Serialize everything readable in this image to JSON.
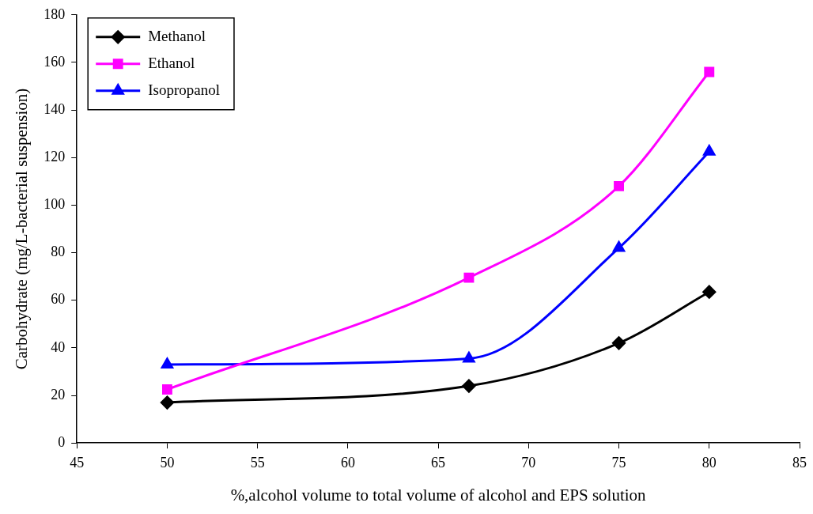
{
  "chart_data": {
    "type": "line",
    "xlabel": "%,alcohol volume to total volume of alcohol and EPS solution",
    "ylabel": "Carbohydrate (mg/L-bacterial suspension)",
    "xlim": [
      45,
      85
    ],
    "xticks": [
      45,
      50,
      55,
      60,
      65,
      70,
      75,
      80,
      85
    ],
    "ylim": [
      0,
      180
    ],
    "yticks": [
      0,
      20,
      40,
      60,
      80,
      100,
      120,
      140,
      160,
      180
    ],
    "grid": false,
    "legend": "top left",
    "line_style": "solid",
    "series": [
      {
        "name": "Methanol",
        "color": "#000000",
        "marker": "diamond",
        "x": [
          50,
          66.7,
          75,
          80
        ],
        "values": [
          17,
          24,
          42,
          63.5
        ]
      },
      {
        "name": "Ethanol",
        "color": "#ff00ff",
        "marker": "square",
        "x": [
          50,
          66.7,
          75,
          80
        ],
        "values": [
          22.5,
          69.5,
          108,
          156
        ]
      },
      {
        "name": "Isopropanol",
        "color": "#0000ff",
        "marker": "triangle",
        "x": [
          50,
          66.7,
          75,
          80
        ],
        "values": [
          33,
          35.5,
          82,
          122.5
        ]
      }
    ]
  }
}
